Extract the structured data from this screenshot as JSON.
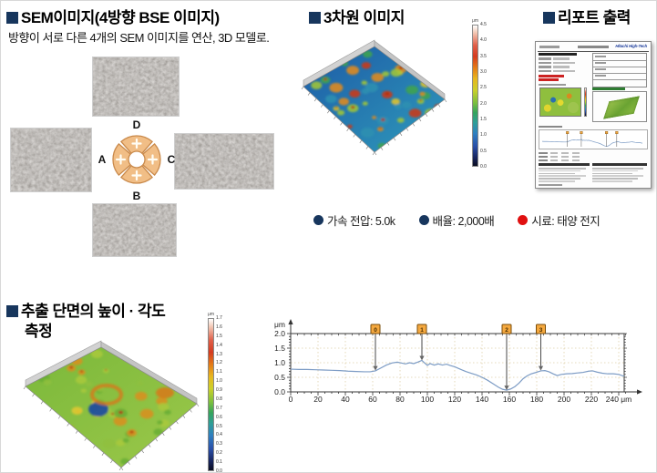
{
  "sem_section": {
    "title": "SEM이미지(4방향 BSE 이미지)",
    "subtitle": "방향이 서로 다른 4개의 SEM 이미지를 연산, 3D 모델로.",
    "detector": {
      "top": "D",
      "left": "A",
      "right": "C",
      "bottom": "B"
    }
  },
  "three_d_section": {
    "title": "3차원 이미지",
    "colorbar": {
      "unit": "μm",
      "ticks": [
        "4.5",
        "4.0",
        "3.5",
        "3.0",
        "2.5",
        "2.0",
        "1.5",
        "1.0",
        "0.5",
        "0.0"
      ]
    }
  },
  "report_section": {
    "title": "리포트 출력",
    "logo": "Hitachi High-Tech"
  },
  "conditions": [
    {
      "bullet_color": "#17365D",
      "label": "가속 전압: 5.0k"
    },
    {
      "bullet_color": "#17365D",
      "label": "배율: 2,000배"
    },
    {
      "bullet_color": "#E01010",
      "label": "시료: 태양 전지"
    }
  ],
  "profile_section": {
    "title_line1": "추출 단면의 높이 · 각도",
    "title_line2": "측정",
    "colorbar": {
      "unit": "μm",
      "ticks": [
        "1.7",
        "1.6",
        "1.5",
        "1.4",
        "1.3",
        "1.2",
        "1.1",
        "1.0",
        "0.9",
        "0.8",
        "0.7",
        "0.6",
        "0.5",
        "0.4",
        "0.3",
        "0.2",
        "0.1",
        "0.0"
      ]
    }
  },
  "chart_data": {
    "type": "line",
    "title": "",
    "xlabel": "μm",
    "ylabel": "μm",
    "xlim": [
      0,
      246
    ],
    "ylim": [
      0,
      2.0
    ],
    "grid": true,
    "line_color": "#7d9cc5",
    "x_ticks": [
      0,
      20,
      40,
      60,
      80,
      100,
      120,
      140,
      160,
      180,
      200,
      220,
      240
    ],
    "x_tick_labels": [
      "0",
      "20",
      "40",
      "60",
      "80",
      "100",
      "120",
      "140",
      "160",
      "180",
      "200",
      "220",
      "240 μm"
    ],
    "y_ticks": [
      0,
      0.5,
      1.0,
      1.5,
      2.0
    ],
    "y_tick_labels": [
      "0.0",
      "0.5",
      "1.0",
      "1.5",
      "2.0"
    ],
    "y_axis_unit": "μm",
    "markers": [
      {
        "label": "0",
        "x": 62,
        "y": 0.73
      },
      {
        "label": "1",
        "x": 96,
        "y": 1.08
      },
      {
        "label": "2",
        "x": 158,
        "y": 0.06
      },
      {
        "label": "3",
        "x": 183,
        "y": 0.73
      }
    ],
    "series": [
      {
        "name": "height-profile",
        "points": [
          [
            0,
            0.78
          ],
          [
            6,
            0.77
          ],
          [
            12,
            0.77
          ],
          [
            18,
            0.76
          ],
          [
            24,
            0.75
          ],
          [
            30,
            0.74
          ],
          [
            36,
            0.73
          ],
          [
            42,
            0.71
          ],
          [
            48,
            0.7
          ],
          [
            54,
            0.69
          ],
          [
            58,
            0.69
          ],
          [
            62,
            0.72
          ],
          [
            66,
            0.82
          ],
          [
            70,
            0.92
          ],
          [
            74,
            0.99
          ],
          [
            78,
            1.02
          ],
          [
            81,
            0.99
          ],
          [
            84,
            0.96
          ],
          [
            87,
            1.0
          ],
          [
            90,
            0.97
          ],
          [
            93,
            1.02
          ],
          [
            96,
            1.08
          ],
          [
            98,
            0.99
          ],
          [
            100,
            0.91
          ],
          [
            102,
            0.97
          ],
          [
            105,
            0.92
          ],
          [
            108,
            0.96
          ],
          [
            111,
            0.92
          ],
          [
            114,
            0.95
          ],
          [
            117,
            0.9
          ],
          [
            120,
            0.86
          ],
          [
            124,
            0.78
          ],
          [
            128,
            0.7
          ],
          [
            132,
            0.64
          ],
          [
            136,
            0.58
          ],
          [
            140,
            0.5
          ],
          [
            144,
            0.4
          ],
          [
            148,
            0.28
          ],
          [
            152,
            0.16
          ],
          [
            155,
            0.09
          ],
          [
            158,
            0.06
          ],
          [
            161,
            0.1
          ],
          [
            164,
            0.18
          ],
          [
            167,
            0.3
          ],
          [
            170,
            0.45
          ],
          [
            173,
            0.55
          ],
          [
            176,
            0.62
          ],
          [
            179,
            0.66
          ],
          [
            183,
            0.72
          ],
          [
            186,
            0.73
          ],
          [
            189,
            0.69
          ],
          [
            192,
            0.62
          ],
          [
            195,
            0.56
          ],
          [
            198,
            0.6
          ],
          [
            202,
            0.62
          ],
          [
            206,
            0.63
          ],
          [
            210,
            0.65
          ],
          [
            214,
            0.67
          ],
          [
            218,
            0.71
          ],
          [
            221,
            0.72
          ],
          [
            224,
            0.68
          ],
          [
            228,
            0.64
          ],
          [
            232,
            0.62
          ],
          [
            236,
            0.62
          ],
          [
            240,
            0.6
          ],
          [
            243,
            0.55
          ],
          [
            246,
            0.52
          ]
        ]
      }
    ]
  }
}
